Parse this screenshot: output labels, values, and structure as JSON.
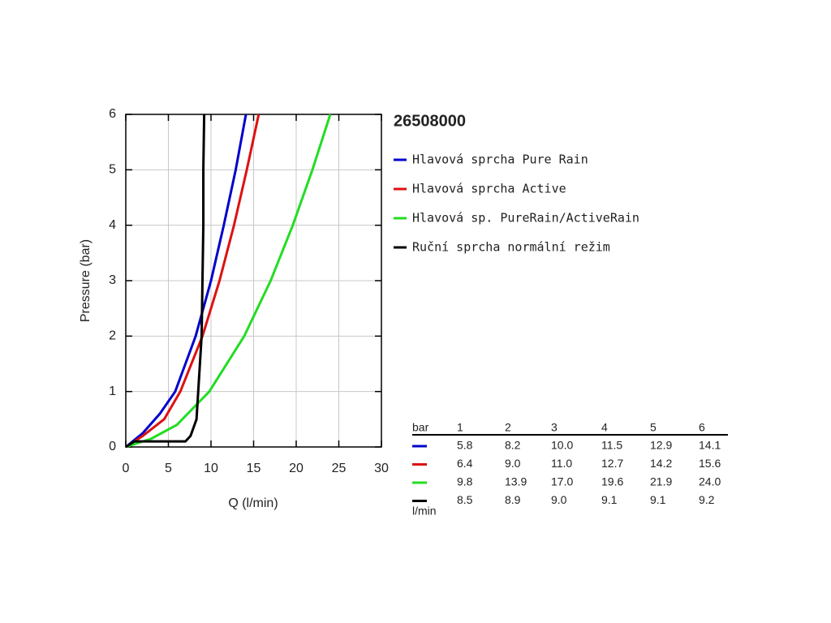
{
  "chart_data": {
    "type": "line",
    "title": "26508000",
    "x_label": "Q (l/min)",
    "y_label": "Pressure (bar)",
    "xlim": [
      0,
      30
    ],
    "xticks": [
      0,
      5,
      10,
      15,
      20,
      25,
      30
    ],
    "ylim": [
      0,
      6
    ],
    "yticks": [
      0,
      1,
      2,
      3,
      4,
      5,
      6
    ],
    "grid": true,
    "series": [
      {
        "name": "Hlavová sprcha Pure Rain",
        "color": "#0000cc",
        "x": [
          0,
          2,
          4,
          5.8,
          8.2,
          10.0,
          11.5,
          12.9,
          14.1
        ],
        "values": [
          0,
          0.25,
          0.6,
          1,
          2,
          3,
          4,
          5,
          6
        ]
      },
      {
        "name": "Hlavová sprcha Active",
        "color": "#dd1111",
        "x": [
          0,
          2,
          4.5,
          6.4,
          9.0,
          11.0,
          12.7,
          14.2,
          15.6
        ],
        "values": [
          0,
          0.2,
          0.5,
          1,
          2,
          3,
          4,
          5,
          6
        ]
      },
      {
        "name": "Hlavová sp. PureRain/ActiveRain",
        "color": "#22dd22",
        "x": [
          0,
          3,
          6,
          9.8,
          13.9,
          17.0,
          19.6,
          21.9,
          24.0
        ],
        "values": [
          0,
          0.15,
          0.4,
          1,
          2,
          3,
          4,
          5,
          6
        ]
      },
      {
        "name": "Ruční sprcha normální režim",
        "color": "#000000",
        "x": [
          0,
          1,
          7,
          7.6,
          8.3,
          8.5,
          8.9,
          9.0,
          9.1,
          9.1,
          9.2
        ],
        "values": [
          0,
          0.1,
          0.1,
          0.2,
          0.5,
          1,
          2,
          3,
          4,
          5,
          6
        ]
      }
    ]
  },
  "table": {
    "columns": [
      "bar",
      "1",
      "2",
      "3",
      "4",
      "5",
      "6"
    ],
    "rows": [
      [
        "5.8",
        "8.2",
        "10.0",
        "11.5",
        "12.9",
        "14.1"
      ],
      [
        "6.4",
        "9.0",
        "11.0",
        "12.7",
        "14.2",
        "15.6"
      ],
      [
        "9.8",
        "13.9",
        "17.0",
        "19.6",
        "21.9",
        "24.0"
      ],
      [
        "8.5",
        "8.9",
        "9.0",
        "9.1",
        "9.1",
        "9.2"
      ]
    ],
    "unit": "l/min"
  }
}
